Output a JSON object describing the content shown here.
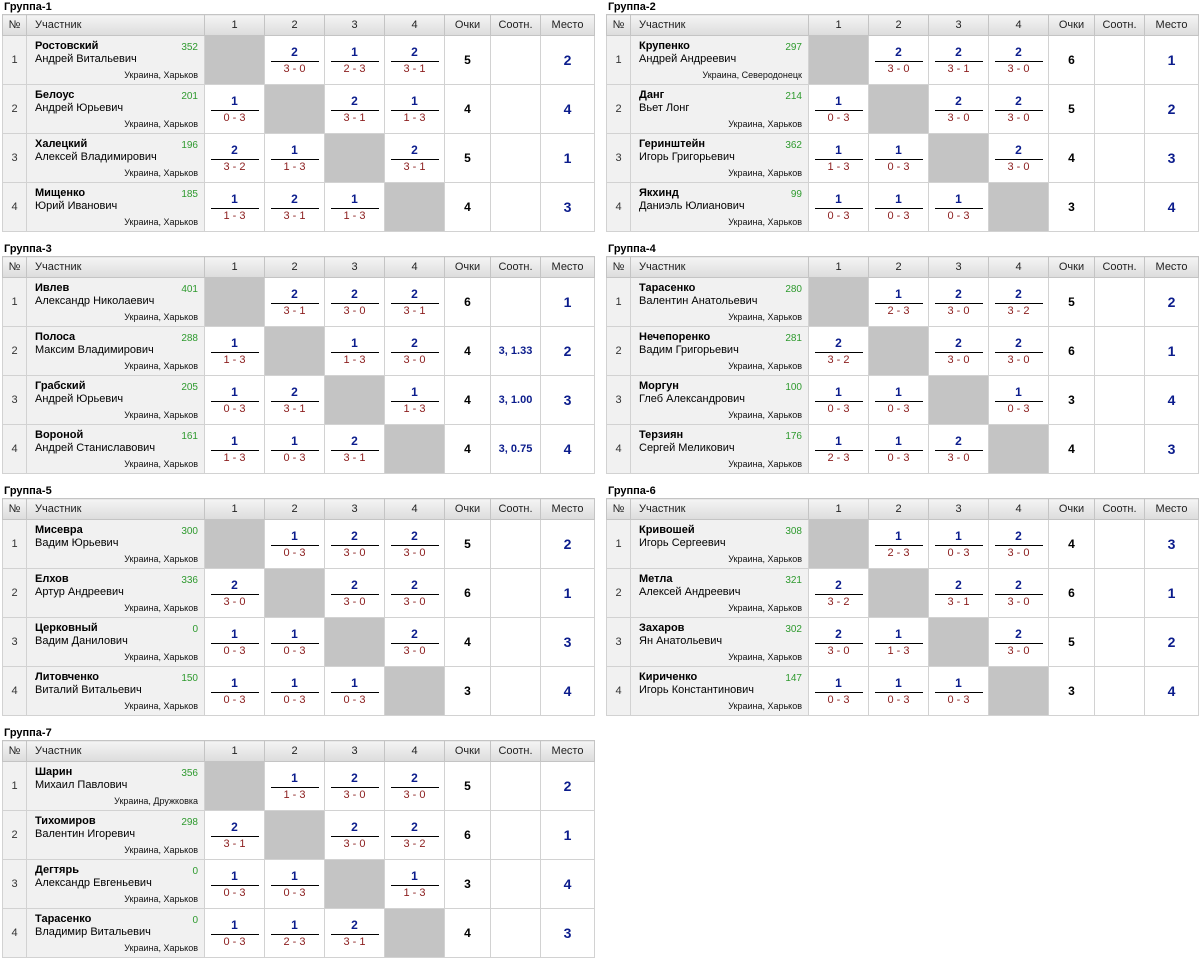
{
  "headers": {
    "no": "№",
    "player": "Участник",
    "c1": "1",
    "c2": "2",
    "c3": "3",
    "c4": "4",
    "points": "Очки",
    "ratio": "Соотн.",
    "place": "Место"
  },
  "groups": [
    {
      "title": "Группа-1",
      "players": [
        {
          "no": "1",
          "surname": "Ростовский",
          "given": "Андрей Витальевич",
          "rating": "352",
          "location": "Украина, Харьков",
          "results": [
            null,
            {
              "p": "2",
              "s": "3 - 0"
            },
            {
              "p": "1",
              "s": "2 - 3"
            },
            {
              "p": "2",
              "s": "3 - 1"
            }
          ],
          "points": "5",
          "ratio": "",
          "place": "2"
        },
        {
          "no": "2",
          "surname": "Белоус",
          "given": "Андрей Юрьевич",
          "rating": "201",
          "location": "Украина, Харьков",
          "results": [
            {
              "p": "1",
              "s": "0 - 3"
            },
            null,
            {
              "p": "2",
              "s": "3 - 1"
            },
            {
              "p": "1",
              "s": "1 - 3"
            }
          ],
          "points": "4",
          "ratio": "",
          "place": "4"
        },
        {
          "no": "3",
          "surname": "Халецкий",
          "given": "Алексей Владимирович",
          "rating": "196",
          "location": "Украина, Харьков",
          "results": [
            {
              "p": "2",
              "s": "3 - 2"
            },
            {
              "p": "1",
              "s": "1 - 3"
            },
            null,
            {
              "p": "2",
              "s": "3 - 1"
            }
          ],
          "points": "5",
          "ratio": "",
          "place": "1"
        },
        {
          "no": "4",
          "surname": "Мищенко",
          "given": "Юрий Иванович",
          "rating": "185",
          "location": "Украина, Харьков",
          "results": [
            {
              "p": "1",
              "s": "1 - 3"
            },
            {
              "p": "2",
              "s": "3 - 1"
            },
            {
              "p": "1",
              "s": "1 - 3"
            },
            null
          ],
          "points": "4",
          "ratio": "",
          "place": "3"
        }
      ]
    },
    {
      "title": "Группа-2",
      "players": [
        {
          "no": "1",
          "surname": "Крупенко",
          "given": "Андрей Андреевич",
          "rating": "297",
          "location": "Украина, Северодонецк",
          "results": [
            null,
            {
              "p": "2",
              "s": "3 - 0"
            },
            {
              "p": "2",
              "s": "3 - 1"
            },
            {
              "p": "2",
              "s": "3 - 0"
            }
          ],
          "points": "6",
          "ratio": "",
          "place": "1"
        },
        {
          "no": "2",
          "surname": "Данг",
          "given": "Вьет Лонг",
          "rating": "214",
          "location": "Украина, Харьков",
          "results": [
            {
              "p": "1",
              "s": "0 - 3"
            },
            null,
            {
              "p": "2",
              "s": "3 - 0"
            },
            {
              "p": "2",
              "s": "3 - 0"
            }
          ],
          "points": "5",
          "ratio": "",
          "place": "2"
        },
        {
          "no": "3",
          "surname": "Геринштейн",
          "given": "Игорь Григорьевич",
          "rating": "362",
          "location": "Украина, Харьков",
          "results": [
            {
              "p": "1",
              "s": "1 - 3"
            },
            {
              "p": "1",
              "s": "0 - 3"
            },
            null,
            {
              "p": "2",
              "s": "3 - 0"
            }
          ],
          "points": "4",
          "ratio": "",
          "place": "3"
        },
        {
          "no": "4",
          "surname": "Якхинд",
          "given": "Даниэль Юлианович",
          "rating": "99",
          "location": "Украина, Харьков",
          "results": [
            {
              "p": "1",
              "s": "0 - 3"
            },
            {
              "p": "1",
              "s": "0 - 3"
            },
            {
              "p": "1",
              "s": "0 - 3"
            },
            null
          ],
          "points": "3",
          "ratio": "",
          "place": "4"
        }
      ]
    },
    {
      "title": "Группа-3",
      "players": [
        {
          "no": "1",
          "surname": "Ивлев",
          "given": "Александр Николаевич",
          "rating": "401",
          "location": "Украина, Харьков",
          "results": [
            null,
            {
              "p": "2",
              "s": "3 - 1"
            },
            {
              "p": "2",
              "s": "3 - 0"
            },
            {
              "p": "2",
              "s": "3 - 1"
            }
          ],
          "points": "6",
          "ratio": "",
          "place": "1"
        },
        {
          "no": "2",
          "surname": "Полоса",
          "given": "Максим Владимирович",
          "rating": "288",
          "location": "Украина, Харьков",
          "results": [
            {
              "p": "1",
              "s": "1 - 3"
            },
            null,
            {
              "p": "1",
              "s": "1 - 3"
            },
            {
              "p": "2",
              "s": "3 - 0"
            }
          ],
          "points": "4",
          "ratio": "3, 1.33",
          "place": "2"
        },
        {
          "no": "3",
          "surname": "Грабский",
          "given": "Андрей Юрьевич",
          "rating": "205",
          "location": "Украина, Харьков",
          "results": [
            {
              "p": "1",
              "s": "0 - 3"
            },
            {
              "p": "2",
              "s": "3 - 1"
            },
            null,
            {
              "p": "1",
              "s": "1 - 3"
            }
          ],
          "points": "4",
          "ratio": "3, 1.00",
          "place": "3"
        },
        {
          "no": "4",
          "surname": "Вороной",
          "given": "Андрей Станиславович",
          "rating": "161",
          "location": "Украина, Харьков",
          "results": [
            {
              "p": "1",
              "s": "1 - 3"
            },
            {
              "p": "1",
              "s": "0 - 3"
            },
            {
              "p": "2",
              "s": "3 - 1"
            },
            null
          ],
          "points": "4",
          "ratio": "3, 0.75",
          "place": "4"
        }
      ]
    },
    {
      "title": "Группа-4",
      "players": [
        {
          "no": "1",
          "surname": "Тарасенко",
          "given": "Валентин Анатольевич",
          "rating": "280",
          "location": "Украина, Харьков",
          "results": [
            null,
            {
              "p": "1",
              "s": "2 - 3"
            },
            {
              "p": "2",
              "s": "3 - 0"
            },
            {
              "p": "2",
              "s": "3 - 2"
            }
          ],
          "points": "5",
          "ratio": "",
          "place": "2"
        },
        {
          "no": "2",
          "surname": "Нечепоренко",
          "given": "Вадим Григорьевич",
          "rating": "281",
          "location": "Украина, Харьков",
          "results": [
            {
              "p": "2",
              "s": "3 - 2"
            },
            null,
            {
              "p": "2",
              "s": "3 - 0"
            },
            {
              "p": "2",
              "s": "3 - 0"
            }
          ],
          "points": "6",
          "ratio": "",
          "place": "1"
        },
        {
          "no": "3",
          "surname": "Моргун",
          "given": "Глеб Александрович",
          "rating": "100",
          "location": "Украина, Харьков",
          "results": [
            {
              "p": "1",
              "s": "0 - 3"
            },
            {
              "p": "1",
              "s": "0 - 3"
            },
            null,
            {
              "p": "1",
              "s": "0 - 3"
            }
          ],
          "points": "3",
          "ratio": "",
          "place": "4"
        },
        {
          "no": "4",
          "surname": "Терзиян",
          "given": "Сергей Меликович",
          "rating": "176",
          "location": "Украина, Харьков",
          "results": [
            {
              "p": "1",
              "s": "2 - 3"
            },
            {
              "p": "1",
              "s": "0 - 3"
            },
            {
              "p": "2",
              "s": "3 - 0"
            },
            null
          ],
          "points": "4",
          "ratio": "",
          "place": "3"
        }
      ]
    },
    {
      "title": "Группа-5",
      "players": [
        {
          "no": "1",
          "surname": "Мисевра",
          "given": "Вадим Юрьевич",
          "rating": "300",
          "location": "Украина, Харьков",
          "results": [
            null,
            {
              "p": "1",
              "s": "0 - 3"
            },
            {
              "p": "2",
              "s": "3 - 0"
            },
            {
              "p": "2",
              "s": "3 - 0"
            }
          ],
          "points": "5",
          "ratio": "",
          "place": "2"
        },
        {
          "no": "2",
          "surname": "Елхов",
          "given": "Артур Андреевич",
          "rating": "336",
          "location": "Украина, Харьков",
          "results": [
            {
              "p": "2",
              "s": "3 - 0"
            },
            null,
            {
              "p": "2",
              "s": "3 - 0"
            },
            {
              "p": "2",
              "s": "3 - 0"
            }
          ],
          "points": "6",
          "ratio": "",
          "place": "1"
        },
        {
          "no": "3",
          "surname": "Церковный",
          "given": "Вадим Данилович",
          "rating": "0",
          "location": "Украина, Харьков",
          "results": [
            {
              "p": "1",
              "s": "0 - 3"
            },
            {
              "p": "1",
              "s": "0 - 3"
            },
            null,
            {
              "p": "2",
              "s": "3 - 0"
            }
          ],
          "points": "4",
          "ratio": "",
          "place": "3"
        },
        {
          "no": "4",
          "surname": "Литовченко",
          "given": "Виталий Витальевич",
          "rating": "150",
          "location": "Украина, Харьков",
          "results": [
            {
              "p": "1",
              "s": "0 - 3"
            },
            {
              "p": "1",
              "s": "0 - 3"
            },
            {
              "p": "1",
              "s": "0 - 3"
            },
            null
          ],
          "points": "3",
          "ratio": "",
          "place": "4"
        }
      ]
    },
    {
      "title": "Группа-6",
      "players": [
        {
          "no": "1",
          "surname": "Кривошей",
          "given": "Игорь Сергеевич",
          "rating": "308",
          "location": "Украина, Харьков",
          "results": [
            null,
            {
              "p": "1",
              "s": "2 - 3"
            },
            {
              "p": "1",
              "s": "0 - 3"
            },
            {
              "p": "2",
              "s": "3 - 0"
            }
          ],
          "points": "4",
          "ratio": "",
          "place": "3"
        },
        {
          "no": "2",
          "surname": "Метла",
          "given": "Алексей Андреевич",
          "rating": "321",
          "location": "Украина, Харьков",
          "results": [
            {
              "p": "2",
              "s": "3 - 2"
            },
            null,
            {
              "p": "2",
              "s": "3 - 1"
            },
            {
              "p": "2",
              "s": "3 - 0"
            }
          ],
          "points": "6",
          "ratio": "",
          "place": "1"
        },
        {
          "no": "3",
          "surname": "Захаров",
          "given": "Ян Анатольевич",
          "rating": "302",
          "location": "Украина, Харьков",
          "results": [
            {
              "p": "2",
              "s": "3 - 0"
            },
            {
              "p": "1",
              "s": "1 - 3"
            },
            null,
            {
              "p": "2",
              "s": "3 - 0"
            }
          ],
          "points": "5",
          "ratio": "",
          "place": "2"
        },
        {
          "no": "4",
          "surname": "Кириченко",
          "given": "Игорь Константинович",
          "rating": "147",
          "location": "Украина, Харьков",
          "results": [
            {
              "p": "1",
              "s": "0 - 3"
            },
            {
              "p": "1",
              "s": "0 - 3"
            },
            {
              "p": "1",
              "s": "0 - 3"
            },
            null
          ],
          "points": "3",
          "ratio": "",
          "place": "4"
        }
      ]
    },
    {
      "title": "Группа-7",
      "players": [
        {
          "no": "1",
          "surname": "Шарин",
          "given": "Михаил Павлович",
          "rating": "356",
          "location": "Украина, Дружковка",
          "results": [
            null,
            {
              "p": "1",
              "s": "1 - 3"
            },
            {
              "p": "2",
              "s": "3 - 0"
            },
            {
              "p": "2",
              "s": "3 - 0"
            }
          ],
          "points": "5",
          "ratio": "",
          "place": "2"
        },
        {
          "no": "2",
          "surname": "Тихомиров",
          "given": "Валентин Игоревич",
          "rating": "298",
          "location": "Украина, Харьков",
          "results": [
            {
              "p": "2",
              "s": "3 - 1"
            },
            null,
            {
              "p": "2",
              "s": "3 - 0"
            },
            {
              "p": "2",
              "s": "3 - 2"
            }
          ],
          "points": "6",
          "ratio": "",
          "place": "1"
        },
        {
          "no": "3",
          "surname": "Дегтярь",
          "given": "Александр Евгеньевич",
          "rating": "0",
          "location": "Украина, Харьков",
          "results": [
            {
              "p": "1",
              "s": "0 - 3"
            },
            {
              "p": "1",
              "s": "0 - 3"
            },
            null,
            {
              "p": "1",
              "s": "1 - 3"
            }
          ],
          "points": "3",
          "ratio": "",
          "place": "4"
        },
        {
          "no": "4",
          "surname": "Тарасенко",
          "given": "Владимир Витальевич",
          "rating": "0",
          "location": "Украина, Харьков",
          "results": [
            {
              "p": "1",
              "s": "0 - 3"
            },
            {
              "p": "1",
              "s": "2 - 3"
            },
            {
              "p": "2",
              "s": "3 - 1"
            },
            null
          ],
          "points": "4",
          "ratio": "",
          "place": "3"
        }
      ]
    }
  ]
}
